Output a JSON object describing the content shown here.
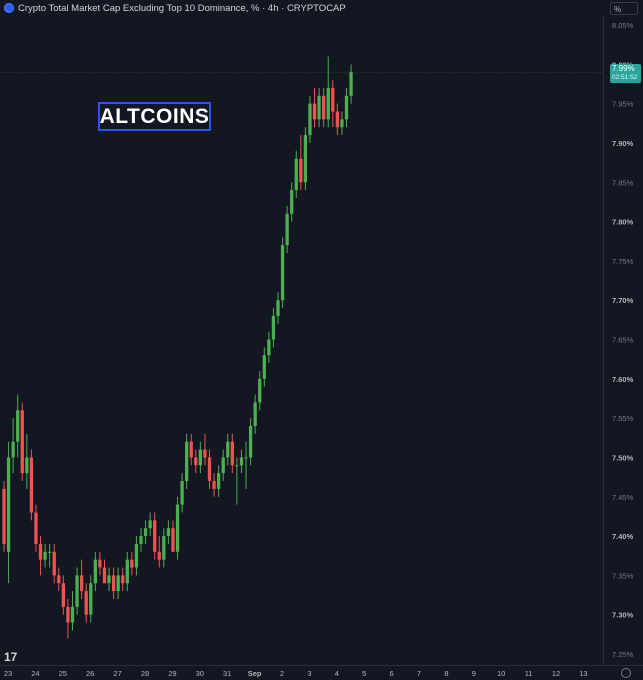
{
  "header": {
    "title": "Crypto Total Market Cap Excluding Top 10 Dominance, % · 4h · CRYPTOCAP",
    "unit_button": "%"
  },
  "watermark": "ALTCOINS",
  "last_price": {
    "value": "7.99%",
    "countdown": "02:51:52"
  },
  "colors": {
    "background": "#131722",
    "up": "#26a69a",
    "down": "#ef5350",
    "up_bright": "#4caf50",
    "accent": "#2f50f5"
  },
  "icons": [
    "tradingview-logo-icon",
    "settings-gear-icon",
    "data-source-icon"
  ],
  "chart_data": {
    "type": "candlestick",
    "title": "Crypto Total Market Cap Excluding Top 10 Dominance, %",
    "timeframe": "4h",
    "y_ticks": [
      "8.05%",
      "8.00%",
      "7.95%",
      "7.90%",
      "7.85%",
      "7.80%",
      "7.75%",
      "7.70%",
      "7.65%",
      "7.60%",
      "7.55%",
      "7.50%",
      "7.45%",
      "7.40%",
      "7.35%",
      "7.30%",
      "7.25%"
    ],
    "y_range": [
      7.245,
      8.06
    ],
    "x_ticks": [
      "23",
      "24",
      "25",
      "26",
      "27",
      "28",
      "29",
      "30",
      "31",
      "Sep",
      "2",
      "3",
      "4",
      "5",
      "6",
      "7",
      "8",
      "9",
      "10",
      "11",
      "12",
      "13"
    ],
    "last_value": 7.99,
    "candles": [
      [
        7.46,
        7.47,
        7.38,
        7.39
      ],
      [
        7.38,
        7.52,
        7.34,
        7.5
      ],
      [
        7.5,
        7.55,
        7.48,
        7.52
      ],
      [
        7.52,
        7.58,
        7.5,
        7.56
      ],
      [
        7.56,
        7.57,
        7.47,
        7.48
      ],
      [
        7.48,
        7.53,
        7.46,
        7.5
      ],
      [
        7.5,
        7.51,
        7.42,
        7.43
      ],
      [
        7.43,
        7.44,
        7.38,
        7.39
      ],
      [
        7.39,
        7.4,
        7.35,
        7.37
      ],
      [
        7.37,
        7.39,
        7.36,
        7.38
      ],
      [
        7.38,
        7.39,
        7.36,
        7.38
      ],
      [
        7.38,
        7.39,
        7.34,
        7.35
      ],
      [
        7.35,
        7.36,
        7.33,
        7.34
      ],
      [
        7.34,
        7.35,
        7.3,
        7.31
      ],
      [
        7.31,
        7.32,
        7.27,
        7.29
      ],
      [
        7.29,
        7.33,
        7.28,
        7.31
      ],
      [
        7.31,
        7.36,
        7.3,
        7.35
      ],
      [
        7.35,
        7.37,
        7.32,
        7.33
      ],
      [
        7.33,
        7.34,
        7.29,
        7.3
      ],
      [
        7.3,
        7.35,
        7.29,
        7.34
      ],
      [
        7.34,
        7.38,
        7.33,
        7.37
      ],
      [
        7.37,
        7.38,
        7.35,
        7.36
      ],
      [
        7.36,
        7.37,
        7.34,
        7.34
      ],
      [
        7.34,
        7.36,
        7.33,
        7.35
      ],
      [
        7.35,
        7.36,
        7.32,
        7.33
      ],
      [
        7.33,
        7.36,
        7.32,
        7.35
      ],
      [
        7.35,
        7.36,
        7.33,
        7.34
      ],
      [
        7.34,
        7.38,
        7.33,
        7.37
      ],
      [
        7.37,
        7.38,
        7.35,
        7.36
      ],
      [
        7.36,
        7.4,
        7.35,
        7.39
      ],
      [
        7.39,
        7.41,
        7.38,
        7.4
      ],
      [
        7.4,
        7.42,
        7.39,
        7.41
      ],
      [
        7.41,
        7.43,
        7.4,
        7.42
      ],
      [
        7.42,
        7.43,
        7.37,
        7.38
      ],
      [
        7.38,
        7.4,
        7.36,
        7.37
      ],
      [
        7.37,
        7.41,
        7.36,
        7.4
      ],
      [
        7.4,
        7.42,
        7.39,
        7.41
      ],
      [
        7.41,
        7.42,
        7.38,
        7.38
      ],
      [
        7.38,
        7.45,
        7.37,
        7.44
      ],
      [
        7.44,
        7.48,
        7.43,
        7.47
      ],
      [
        7.47,
        7.53,
        7.46,
        7.52
      ],
      [
        7.52,
        7.53,
        7.49,
        7.5
      ],
      [
        7.5,
        7.51,
        7.48,
        7.49
      ],
      [
        7.49,
        7.52,
        7.48,
        7.51
      ],
      [
        7.51,
        7.53,
        7.49,
        7.5
      ],
      [
        7.5,
        7.51,
        7.46,
        7.47
      ],
      [
        7.47,
        7.48,
        7.45,
        7.46
      ],
      [
        7.46,
        7.49,
        7.45,
        7.48
      ],
      [
        7.48,
        7.51,
        7.47,
        7.5
      ],
      [
        7.5,
        7.53,
        7.49,
        7.52
      ],
      [
        7.52,
        7.53,
        7.48,
        7.49
      ],
      [
        7.49,
        7.5,
        7.44,
        7.49
      ],
      [
        7.49,
        7.51,
        7.48,
        7.5
      ],
      [
        7.5,
        7.52,
        7.46,
        7.5
      ],
      [
        7.5,
        7.55,
        7.49,
        7.54
      ],
      [
        7.54,
        7.58,
        7.53,
        7.57
      ],
      [
        7.57,
        7.61,
        7.56,
        7.6
      ],
      [
        7.6,
        7.64,
        7.59,
        7.63
      ],
      [
        7.63,
        7.66,
        7.62,
        7.65
      ],
      [
        7.65,
        7.69,
        7.64,
        7.68
      ],
      [
        7.68,
        7.71,
        7.67,
        7.7
      ],
      [
        7.7,
        7.78,
        7.69,
        7.77
      ],
      [
        7.77,
        7.82,
        7.76,
        7.81
      ],
      [
        7.81,
        7.85,
        7.8,
        7.84
      ],
      [
        7.84,
        7.89,
        7.83,
        7.88
      ],
      [
        7.88,
        7.91,
        7.84,
        7.85
      ],
      [
        7.85,
        7.92,
        7.84,
        7.91
      ],
      [
        7.91,
        7.96,
        7.9,
        7.95
      ],
      [
        7.95,
        7.97,
        7.92,
        7.93
      ],
      [
        7.93,
        7.97,
        7.92,
        7.96
      ],
      [
        7.96,
        7.97,
        7.92,
        7.93
      ],
      [
        7.93,
        8.01,
        7.92,
        7.97
      ],
      [
        7.97,
        7.98,
        7.92,
        7.94
      ],
      [
        7.94,
        7.95,
        7.91,
        7.92
      ],
      [
        7.92,
        7.94,
        7.91,
        7.93
      ],
      [
        7.93,
        7.97,
        7.92,
        7.96
      ],
      [
        7.96,
        8.0,
        7.95,
        7.99
      ]
    ]
  }
}
